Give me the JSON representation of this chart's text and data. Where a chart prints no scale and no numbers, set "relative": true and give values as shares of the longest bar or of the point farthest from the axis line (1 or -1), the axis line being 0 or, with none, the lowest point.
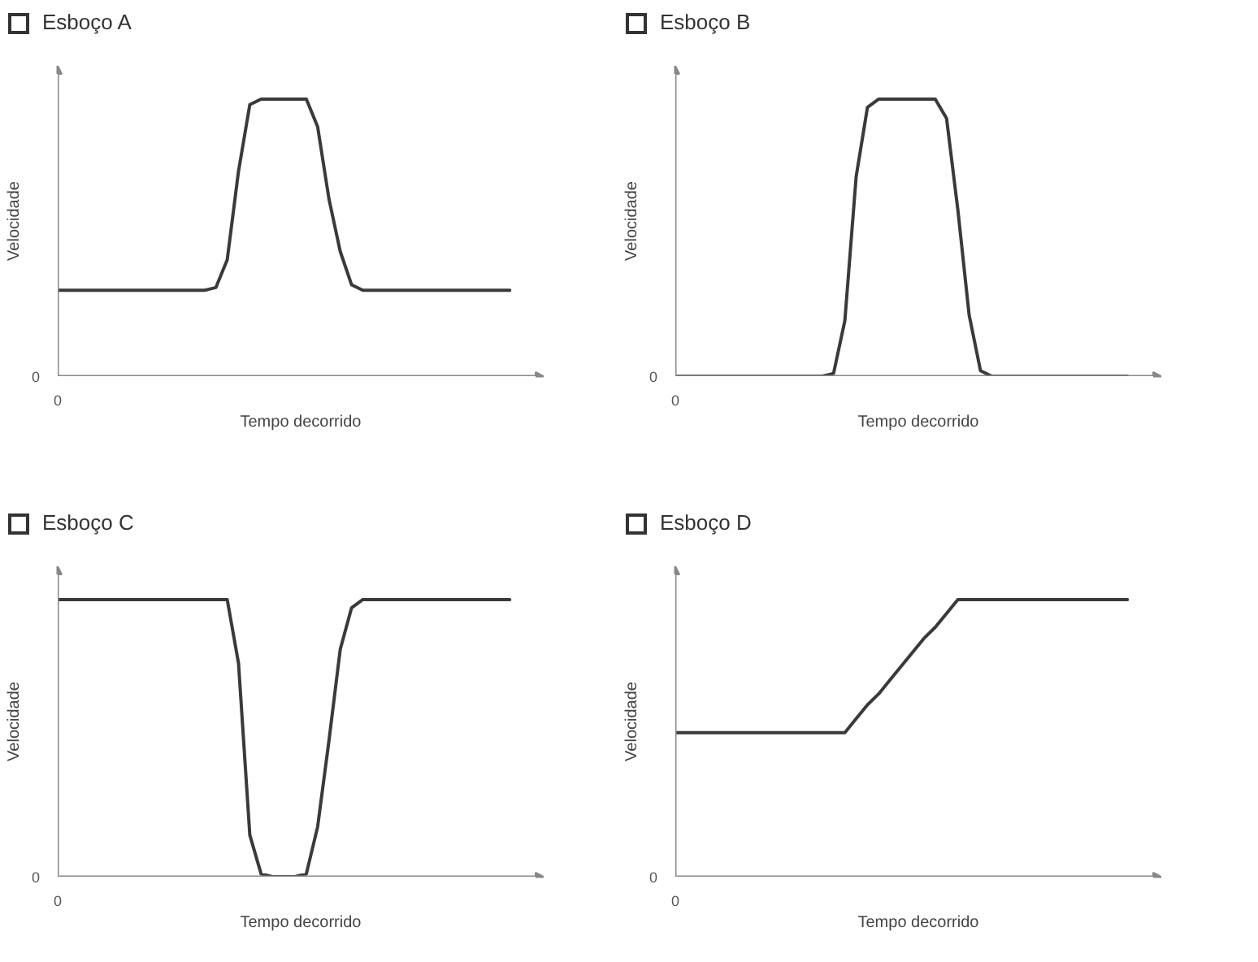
{
  "chart_data": [
    {
      "type": "line",
      "title": "Esboço A",
      "xlabel": "Tempo decorrido",
      "ylabel": "Velocidade",
      "relative": true,
      "color": "#3a3a3a",
      "annotations": [
        "0",
        "0"
      ],
      "categories": [
        null,
        null,
        null,
        null,
        null,
        null,
        null,
        null,
        null,
        null,
        null,
        null,
        null,
        null,
        null,
        null,
        null,
        null,
        null,
        null,
        null,
        null,
        null,
        null,
        null,
        null,
        null,
        null,
        null,
        null,
        null,
        null,
        null,
        null,
        null,
        null,
        null,
        null,
        null,
        null,
        null
      ],
      "values": [
        0.31,
        0.31,
        0.31,
        0.31,
        0.31,
        0.31,
        0.31,
        0.31,
        0.31,
        0.31,
        0.31,
        0.31,
        0.31,
        0.31,
        0.32,
        0.42,
        0.74,
        0.98,
        1,
        1,
        1,
        1,
        1,
        0.9,
        0.64,
        0.45,
        0.33,
        0.31,
        0.31,
        0.31,
        0.31,
        0.31,
        0.31,
        0.31,
        0.31,
        0.31,
        0.31,
        0.31,
        0.31,
        0.31,
        0.31
      ]
    },
    {
      "type": "line",
      "title": "Esboço B",
      "xlabel": "Tempo decorrido",
      "ylabel": "Velocidade",
      "relative": true,
      "color": "#3a3a3a",
      "annotations": [
        "0",
        "0"
      ],
      "categories": [
        null,
        null,
        null,
        null,
        null,
        null,
        null,
        null,
        null,
        null,
        null,
        null,
        null,
        null,
        null,
        null,
        null,
        null,
        null,
        null,
        null,
        null,
        null,
        null,
        null,
        null,
        null,
        null,
        null,
        null,
        null,
        null,
        null,
        null,
        null,
        null,
        null,
        null,
        null,
        null,
        null
      ],
      "values": [
        0,
        0,
        0,
        0,
        0,
        0,
        0,
        0,
        0,
        0,
        0,
        0,
        0,
        0,
        0.01,
        0.2,
        0.72,
        0.97,
        1,
        1,
        1,
        1,
        1,
        1,
        0.93,
        0.6,
        0.22,
        0.02,
        0,
        0,
        0,
        0,
        0,
        0,
        0,
        0,
        0,
        0,
        0,
        0,
        0
      ]
    },
    {
      "type": "line",
      "title": "Esboço C",
      "xlabel": "Tempo decorrido",
      "ylabel": "Velocidade",
      "relative": true,
      "color": "#3a3a3a",
      "annotations": [
        "0",
        "0"
      ],
      "categories": [
        null,
        null,
        null,
        null,
        null,
        null,
        null,
        null,
        null,
        null,
        null,
        null,
        null,
        null,
        null,
        null,
        null,
        null,
        null,
        null,
        null,
        null,
        null,
        null,
        null,
        null,
        null,
        null,
        null,
        null,
        null,
        null,
        null,
        null,
        null,
        null,
        null,
        null,
        null,
        null,
        null
      ],
      "values": [
        1,
        1,
        1,
        1,
        1,
        1,
        1,
        1,
        1,
        1,
        1,
        1,
        1,
        1,
        1,
        1,
        0.77,
        0.15,
        0.01,
        0,
        0,
        0,
        0.01,
        0.18,
        0.49,
        0.82,
        0.97,
        1,
        1,
        1,
        1,
        1,
        1,
        1,
        1,
        1,
        1,
        1,
        1,
        1,
        1
      ]
    },
    {
      "type": "line",
      "title": "Esboço D",
      "xlabel": "Tempo decorrido",
      "ylabel": "Velocidade",
      "relative": true,
      "color": "#3a3a3a",
      "annotations": [
        "0",
        "0"
      ],
      "categories": [
        null,
        null,
        null,
        null,
        null,
        null,
        null,
        null,
        null,
        null,
        null,
        null,
        null,
        null,
        null,
        null,
        null,
        null,
        null,
        null,
        null,
        null,
        null,
        null,
        null,
        null,
        null,
        null,
        null,
        null,
        null,
        null,
        null,
        null,
        null,
        null,
        null,
        null,
        null,
        null,
        null
      ],
      "values": [
        0.52,
        0.52,
        0.52,
        0.52,
        0.52,
        0.52,
        0.52,
        0.52,
        0.52,
        0.52,
        0.52,
        0.52,
        0.52,
        0.52,
        0.52,
        0.52,
        0.57,
        0.62,
        0.66,
        0.71,
        0.76,
        0.81,
        0.86,
        0.9,
        0.95,
        1,
        1,
        1,
        1,
        1,
        1,
        1,
        1,
        1,
        1,
        1,
        1,
        1,
        1,
        1,
        1
      ]
    }
  ]
}
